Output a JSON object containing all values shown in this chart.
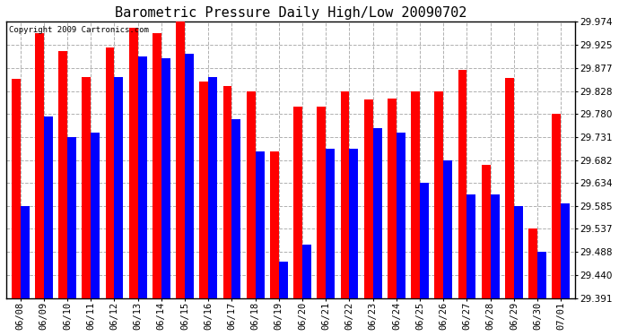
{
  "title": "Barometric Pressure Daily High/Low 20090702",
  "copyright": "Copyright 2009 Cartronics.com",
  "dates": [
    "06/08",
    "06/09",
    "06/10",
    "06/11",
    "06/12",
    "06/13",
    "06/14",
    "06/15",
    "06/16",
    "06/17",
    "06/18",
    "06/19",
    "06/20",
    "06/21",
    "06/22",
    "06/23",
    "06/24",
    "06/25",
    "06/26",
    "06/27",
    "06/28",
    "06/29",
    "06/30",
    "07/01"
  ],
  "highs": [
    29.853,
    29.95,
    29.912,
    29.858,
    29.92,
    29.962,
    29.95,
    29.974,
    29.848,
    29.838,
    29.828,
    29.7,
    29.796,
    29.796,
    29.828,
    29.81,
    29.813,
    29.828,
    29.828,
    29.872,
    29.672,
    29.855,
    29.537,
    29.78
  ],
  "lows": [
    29.585,
    29.775,
    29.731,
    29.74,
    29.858,
    29.902,
    29.897,
    29.906,
    29.858,
    29.768,
    29.7,
    29.468,
    29.503,
    29.706,
    29.706,
    29.75,
    29.74,
    29.634,
    29.682,
    29.61,
    29.61,
    29.585,
    29.488,
    29.59
  ],
  "yticks": [
    29.391,
    29.44,
    29.488,
    29.537,
    29.585,
    29.634,
    29.682,
    29.731,
    29.78,
    29.828,
    29.877,
    29.925,
    29.974
  ],
  "ymin": 29.391,
  "ymax": 29.974,
  "bar_width": 0.38,
  "high_color": "#ff0000",
  "low_color": "#0000ff",
  "bg_color": "#ffffff",
  "grid_color": "#b0b0b0",
  "title_fontsize": 11,
  "tick_fontsize": 7.5,
  "copyright_fontsize": 6.5
}
